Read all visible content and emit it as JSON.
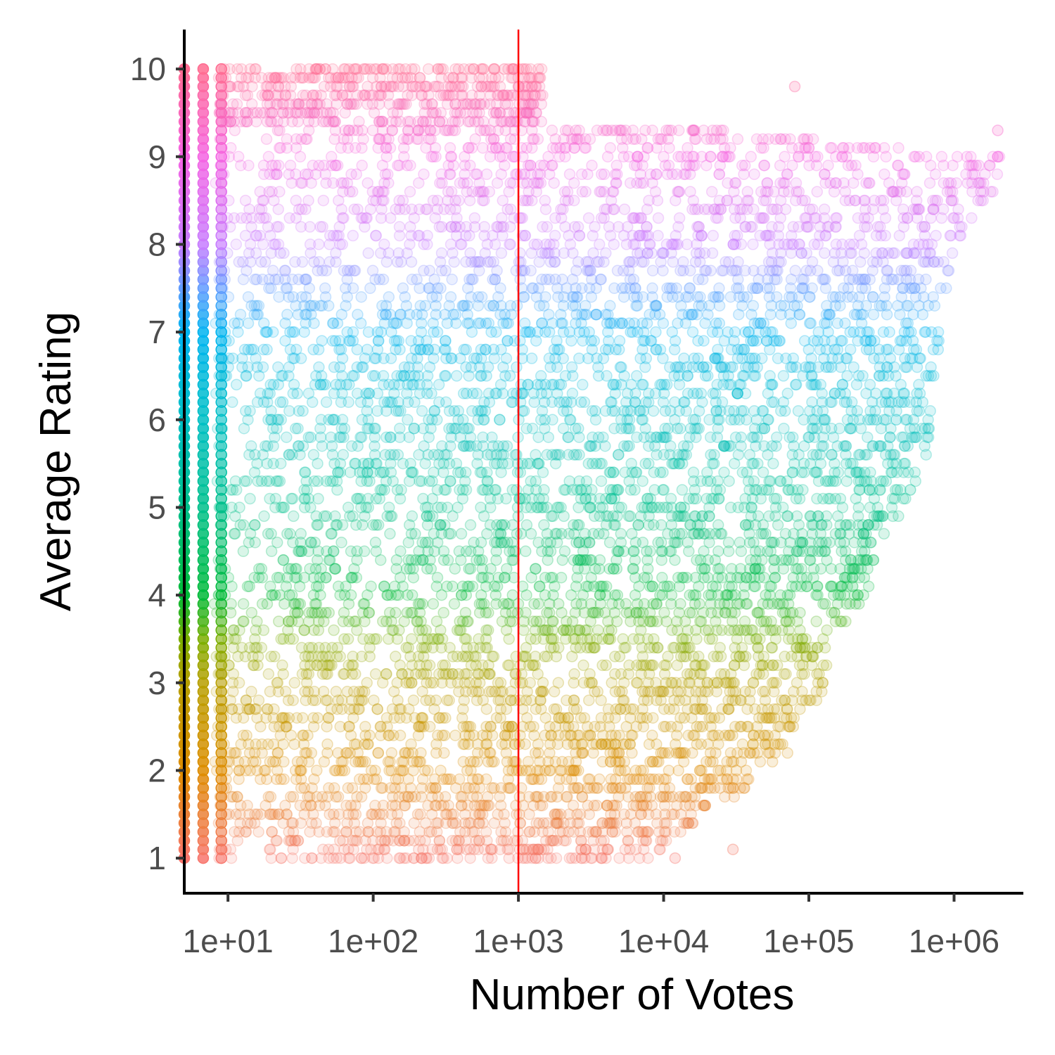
{
  "chart_data": {
    "type": "scatter",
    "title": "",
    "xlabel": "Number of Votes",
    "ylabel": "Average Rating",
    "x_scale": "log10",
    "xlim": [
      5,
      3000000
    ],
    "ylim": [
      0.6,
      10.45
    ],
    "x_ticks": [
      10,
      100,
      1000,
      10000,
      100000,
      1000000
    ],
    "x_tick_labels": [
      "1e+01",
      "1e+02",
      "1e+03",
      "1e+04",
      "1e+05",
      "1e+06"
    ],
    "y_ticks": [
      1,
      2,
      3,
      4,
      5,
      6,
      7,
      8,
      9,
      10
    ],
    "y_tick_labels": [
      "1",
      "2",
      "3",
      "4",
      "5",
      "6",
      "7",
      "8",
      "9",
      "10"
    ],
    "reference_line": {
      "axis": "x",
      "value": 1000,
      "color": "#ff0000"
    },
    "color_encoding": "point colour follows Average Rating (hue scale)",
    "color_scale": [
      {
        "rating": 1,
        "color": "#f8766d"
      },
      {
        "rating": 2,
        "color": "#de8c00"
      },
      {
        "rating": 3,
        "color": "#b79f00"
      },
      {
        "rating": 3.5,
        "color": "#7cae00"
      },
      {
        "rating": 4,
        "color": "#00ba38"
      },
      {
        "rating": 5,
        "color": "#00c08b"
      },
      {
        "rating": 6,
        "color": "#00bfc4"
      },
      {
        "rating": 7,
        "color": "#00b4f0"
      },
      {
        "rating": 7.5,
        "color": "#619cff"
      },
      {
        "rating": 8,
        "color": "#c77cff"
      },
      {
        "rating": 9,
        "color": "#f564e3"
      },
      {
        "rating": 10,
        "color": "#ff6c91"
      }
    ],
    "point_alpha": 0.15,
    "grid": false,
    "legend": "none",
    "series": [
      {
        "distribution": "votes vs rating envelope (max votes reached at each rating)",
        "rating": [
          1,
          1.5,
          2,
          2.5,
          3,
          3.5,
          4,
          4.5,
          5,
          5.5,
          6,
          6.5,
          7,
          7.5,
          8,
          8.5,
          9,
          9.5,
          10
        ],
        "min_votes": [
          5,
          5,
          5,
          5,
          5,
          5,
          5,
          5,
          5,
          5,
          5,
          5,
          5,
          5,
          5,
          5,
          5,
          5,
          5
        ],
        "max_votes": [
          8000,
          20000,
          60000,
          100000,
          130000,
          150000,
          250000,
          300000,
          450000,
          650000,
          700000,
          750000,
          800000,
          900000,
          1000000,
          1800000,
          2200000,
          1500,
          1200
        ]
      }
    ],
    "notable_points": [
      {
        "x": 2000000,
        "y": 9.3
      },
      {
        "x": 2000000,
        "y": 9.0
      },
      {
        "x": 500000,
        "y": 5.2
      },
      {
        "x": 400000,
        "y": 6.0
      },
      {
        "x": 200000,
        "y": 4.1
      },
      {
        "x": 150000,
        "y": 3.8
      },
      {
        "x": 12000,
        "y": 1.0
      },
      {
        "x": 30000,
        "y": 1.1
      },
      {
        "x": 80000,
        "y": 9.8
      },
      {
        "x": 800,
        "y": 10.0
      }
    ]
  }
}
